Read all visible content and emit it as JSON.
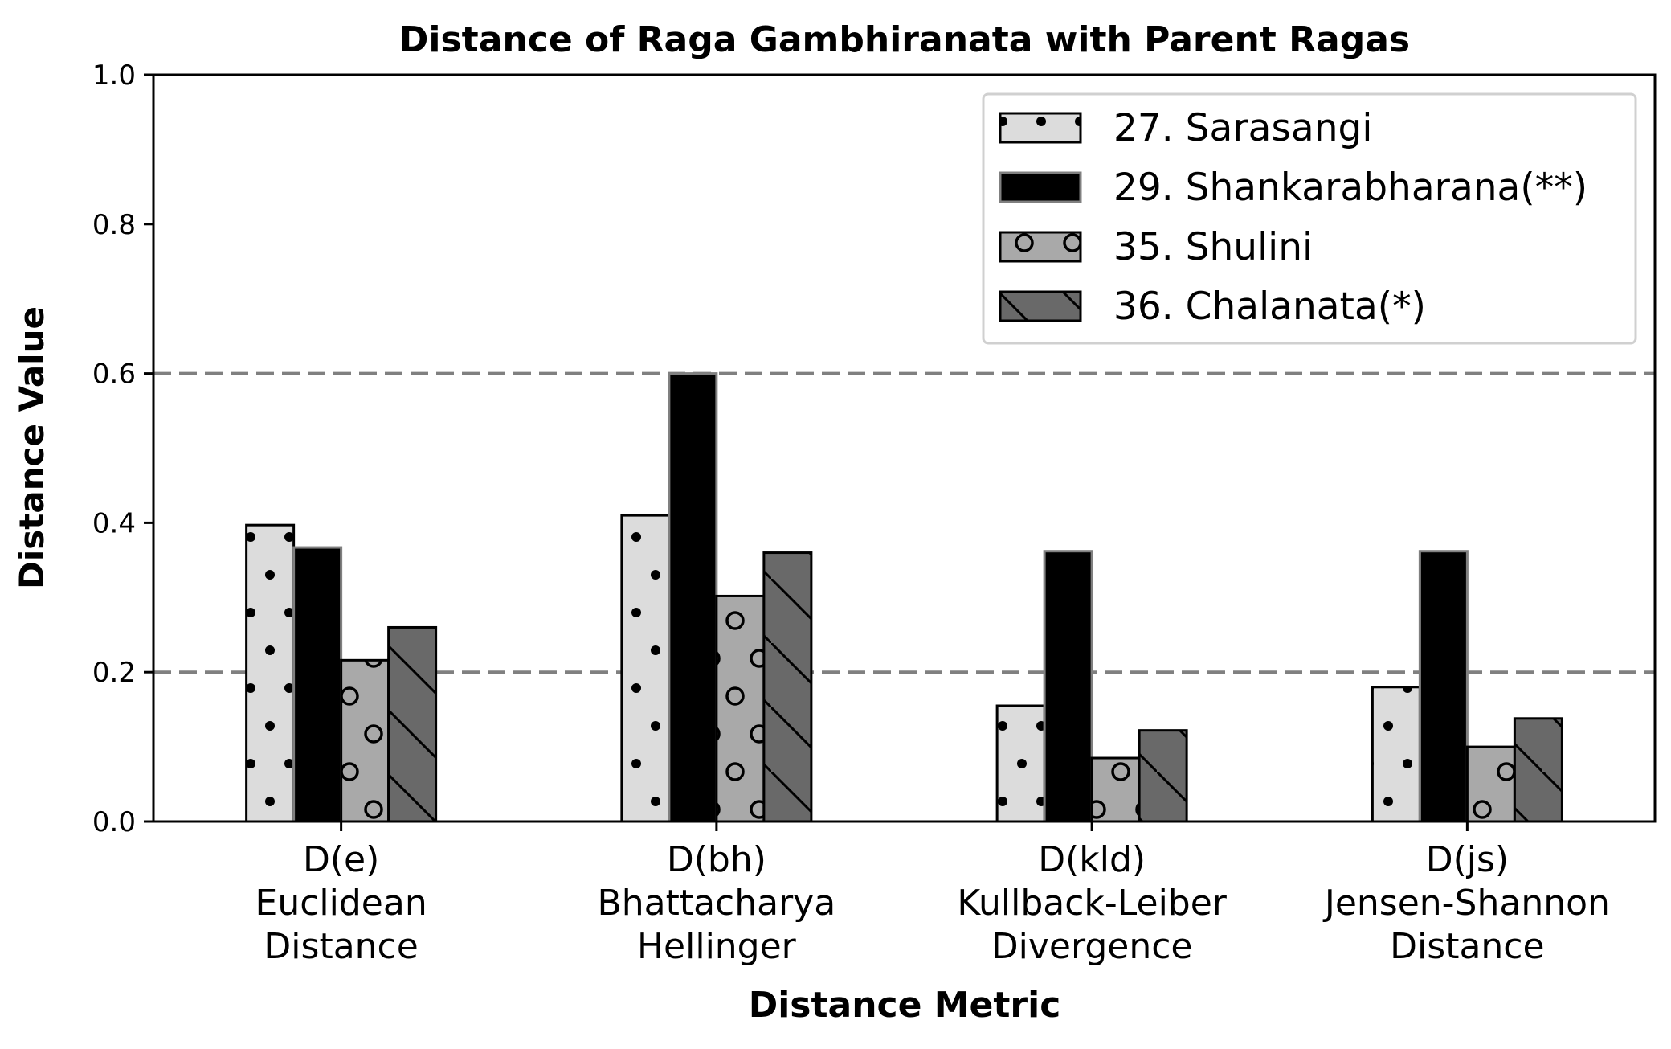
{
  "chart_data": {
    "type": "bar",
    "title": "Distance of Raga Gambhiranata with Parent Ragas",
    "xlabel": "Distance Metric",
    "ylabel": "Distance Value",
    "ylim": [
      0,
      1.0
    ],
    "yticks": [
      "0.0",
      "0.2",
      "0.4",
      "0.6",
      "0.8",
      "1.0"
    ],
    "grid": false,
    "reference_lines": [
      0.2,
      0.6
    ],
    "legend_position": "top-right",
    "categories": [
      [
        "D(e)",
        "Euclidean",
        "Distance"
      ],
      [
        "D(bh)",
        "Bhattacharya",
        "Hellinger"
      ],
      [
        "D(kld)",
        "Kullback-Leiber",
        "Divergence"
      ],
      [
        "D(js)",
        "Jensen-Shannon",
        "Distance"
      ]
    ],
    "series": [
      {
        "name": "27. Sarasangi",
        "values": [
          0.397,
          0.41,
          0.155,
          0.18
        ],
        "color": "#dcdcdc",
        "edge": "#000000",
        "hatch": "dots"
      },
      {
        "name": "29. Shankarabharana(**)",
        "values": [
          0.367,
          0.6,
          0.362,
          0.362
        ],
        "color": "#000000",
        "edge": "#808080",
        "hatch": "none"
      },
      {
        "name": "35. Shulini",
        "values": [
          0.216,
          0.302,
          0.085,
          0.1
        ],
        "color": "#a9a9a9",
        "edge": "#000000",
        "hatch": "circles"
      },
      {
        "name": "36. Chalanata(*)",
        "values": [
          0.26,
          0.36,
          0.122,
          0.138
        ],
        "color": "#696969",
        "edge": "#000000",
        "hatch": "diagonal"
      }
    ]
  }
}
